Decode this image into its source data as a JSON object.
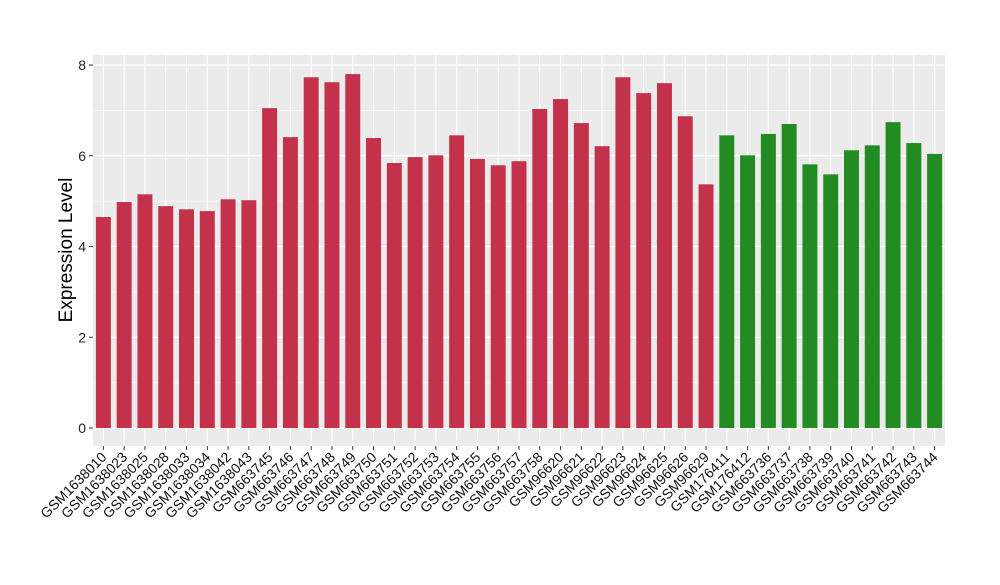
{
  "chart_data": {
    "type": "bar",
    "title": "",
    "xlabel": "",
    "ylabel": "Expression Level",
    "ylim": [
      0,
      8
    ],
    "yticks": [
      0,
      2,
      4,
      6,
      8
    ],
    "grid": true,
    "legend": "none",
    "colors": {
      "group1": "#C3314A",
      "group2": "#228B22",
      "panel": "#EBEBEB",
      "grid": "#FFFFFF"
    },
    "categories": [
      "GSM1638010",
      "GSM1638023",
      "GSM1638025",
      "GSM1638028",
      "GSM1638033",
      "GSM1638034",
      "GSM1638042",
      "GSM1638043",
      "GSM663745",
      "GSM663746",
      "GSM663747",
      "GSM663748",
      "GSM663749",
      "GSM663750",
      "GSM663751",
      "GSM663752",
      "GSM663753",
      "GSM663754",
      "GSM663755",
      "GSM663756",
      "GSM663757",
      "GSM663758",
      "GSM96620",
      "GSM96621",
      "GSM96622",
      "GSM96623",
      "GSM96624",
      "GSM96625",
      "GSM96626",
      "GSM96629",
      "GSM176411",
      "GSM176412",
      "GSM663736",
      "GSM663737",
      "GSM663738",
      "GSM663739",
      "GSM663740",
      "GSM663741",
      "GSM663742",
      "GSM663743",
      "GSM663744"
    ],
    "values": [
      4.65,
      4.98,
      5.15,
      4.89,
      4.82,
      4.78,
      5.04,
      5.02,
      7.05,
      6.41,
      7.73,
      7.62,
      7.8,
      6.39,
      5.84,
      5.97,
      6.01,
      6.45,
      5.93,
      5.79,
      5.88,
      7.03,
      7.25,
      6.72,
      6.21,
      7.73,
      7.38,
      7.6,
      6.87,
      5.37,
      6.45,
      6.01,
      6.48,
      6.7,
      5.81,
      5.59,
      6.12,
      6.23,
      6.74,
      6.28,
      6.04
    ],
    "groups": [
      1,
      1,
      1,
      1,
      1,
      1,
      1,
      1,
      1,
      1,
      1,
      1,
      1,
      1,
      1,
      1,
      1,
      1,
      1,
      1,
      1,
      1,
      1,
      1,
      1,
      1,
      1,
      1,
      1,
      1,
      2,
      2,
      2,
      2,
      2,
      2,
      2,
      2,
      2,
      2,
      2
    ]
  }
}
